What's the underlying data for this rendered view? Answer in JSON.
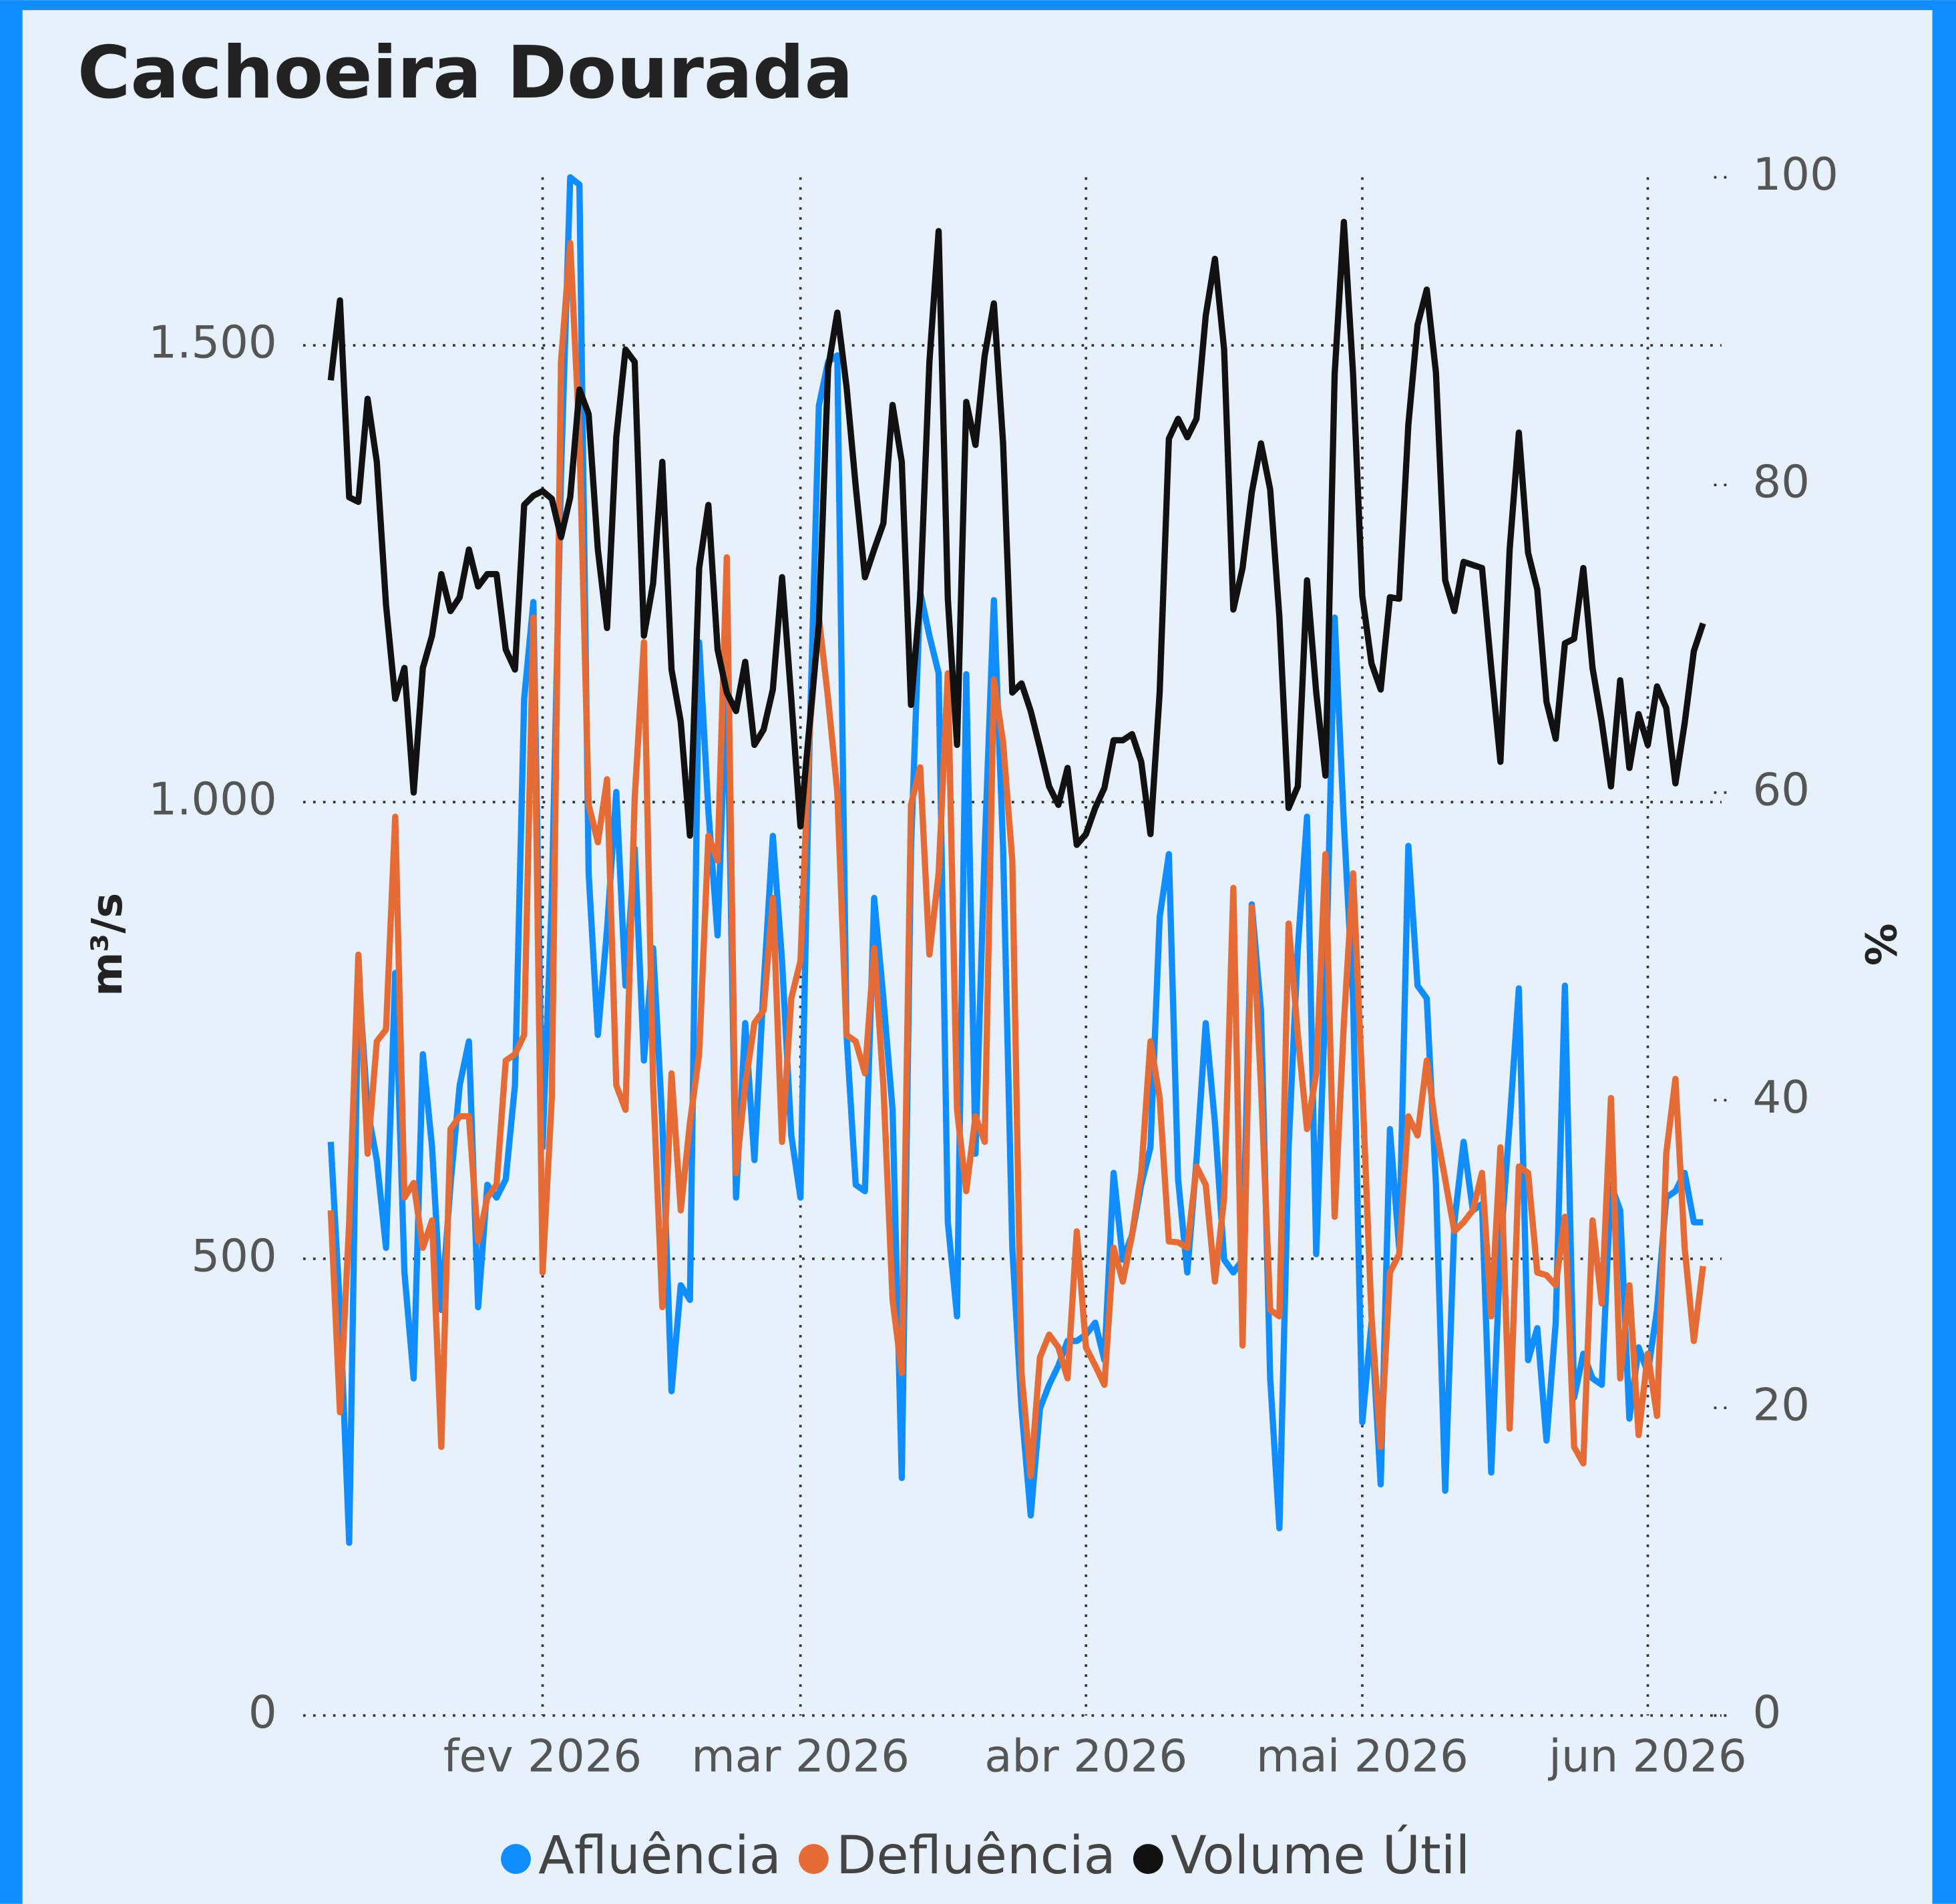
{
  "chart_data": {
    "type": "line",
    "title": "Cachoeira Dourada",
    "y_label": "m³/s",
    "y2_label": "%",
    "x": [
      9,
      10,
      11,
      12,
      13,
      14,
      15,
      16,
      17,
      18,
      19,
      20,
      21,
      22,
      23,
      24,
      25,
      26,
      27,
      28,
      29,
      30,
      31,
      32,
      33,
      34,
      35,
      36,
      37,
      38,
      39,
      40,
      41,
      42,
      43,
      44,
      45,
      46,
      47,
      48,
      49,
      50,
      51,
      52,
      53,
      54,
      55,
      56,
      57,
      58,
      59,
      60,
      61,
      62,
      63,
      64,
      65,
      66,
      67,
      68,
      69,
      70,
      71,
      72,
      73,
      74,
      75,
      76,
      77,
      78,
      79,
      80,
      81,
      82,
      83,
      84,
      85,
      86,
      87,
      88,
      89,
      90,
      91,
      92,
      93,
      94,
      95,
      96,
      97,
      98,
      99,
      100,
      101,
      102,
      103,
      104,
      105,
      106,
      107,
      108,
      109,
      110,
      111,
      112,
      113,
      114,
      115,
      116,
      117,
      118,
      119,
      120,
      121,
      122,
      123,
      124,
      125,
      126,
      127,
      128,
      129,
      130,
      131,
      132,
      133,
      134,
      135,
      136,
      137,
      138,
      139,
      140,
      141,
      142,
      143,
      144,
      145,
      146,
      147,
      148,
      149,
      150,
      151,
      152,
      153,
      154,
      155,
      156,
      157,
      158
    ],
    "xlim": [
      6,
      160
    ],
    "xticks": [
      {
        "value": 32,
        "label": "fev 2026"
      },
      {
        "value": 60,
        "label": "mar 2026"
      },
      {
        "value": 91,
        "label": "abr 2026"
      },
      {
        "value": 121,
        "label": "mai 2026"
      },
      {
        "value": 152,
        "label": "jun 2026"
      }
    ],
    "ylim": [
      0,
      1684
    ],
    "yticks": [
      0,
      500,
      {
        "value": 1000,
        "label": "1.000"
      },
      {
        "value": 1500,
        "label": "1.500"
      }
    ],
    "y2lim": [
      0,
      100
    ],
    "y2ticks": [
      0,
      20,
      40,
      60,
      80,
      100
    ],
    "grid": true,
    "legend": "bottom",
    "series": [
      {
        "name": "Afluência",
        "color": "#118dff",
        "values": [
          628,
          444,
          189,
          813,
          663,
          608,
          512,
          813,
          485,
          369,
          724,
          622,
          444,
          581,
          690,
          738,
          447,
          581,
          567,
          587,
          690,
          1113,
          1219,
          622,
          895,
          1359,
          1684,
          1676,
          922,
          745,
          861,
          1011,
          799,
          949,
          717,
          840,
          649,
          355,
          471,
          455,
          1175,
          990,
          854,
          1141,
          567,
          758,
          608,
          799,
          963,
          826,
          635,
          567,
          1072,
          1434,
          1482,
          1489,
          745,
          581,
          574,
          895,
          785,
          663,
          260,
          949,
          1230,
          1182,
          1141,
          540,
          437,
          1140,
          615,
          949,
          1221,
          949,
          512,
          336,
          219,
          336,
          362,
          383,
          410,
          410,
          417,
          430,
          389,
          594,
          499,
          526,
          581,
          622,
          874,
          943,
          587,
          485,
          608,
          758,
          649,
          499,
          485,
          499,
          888,
          772,
          369,
          205,
          622,
          840,
          984,
          505,
          785,
          1202,
          977,
          785,
          321,
          430,
          253,
          642,
          512,
          952,
          799,
          785,
          581,
          246,
          540,
          628,
          553,
          560,
          266,
          512,
          649,
          796,
          389,
          424,
          301,
          430,
          799,
          348,
          396,
          369,
          362,
          581,
          553,
          325,
          403,
          375,
          444,
          567,
          574,
          594,
          540,
          540
        ]
      },
      {
        "name": "Defluência",
        "color": "#e66c37",
        "values": [
          553,
          332,
          540,
          833,
          615,
          738,
          751,
          984,
          567,
          583,
          512,
          542,
          294,
          642,
          656,
          656,
          519,
          567,
          581,
          717,
          724,
          745,
          1202,
          485,
          676,
          1482,
          1612,
          1400,
          997,
          956,
          1025,
          690,
          663,
          1004,
          1175,
          690,
          447,
          703,
          553,
          649,
          724,
          963,
          936,
          1268,
          594,
          690,
          758,
          772,
          895,
          628,
          785,
          826,
          1079,
          1202,
          1113,
          1011,
          745,
          738,
          703,
          840,
          690,
          455,
          375,
          997,
          1038,
          833,
          922,
          1141,
          663,
          574,
          656,
          628,
          1134,
          1065,
          936,
          375,
          262,
          392,
          417,
          403,
          369,
          530,
          403,
          383,
          362,
          512,
          475,
          526,
          594,
          738,
          676,
          519,
          518,
          512,
          601,
          581,
          475,
          567,
          906,
          405,
          885,
          690,
          444,
          437,
          867,
          745,
          642,
          703,
          943,
          546,
          758,
          922,
          690,
          437,
          294,
          485,
          505,
          656,
          635,
          717,
          642,
          587,
          530,
          540,
          553,
          594,
          437,
          622,
          314,
          601,
          594,
          485,
          482,
          471,
          546,
          294,
          276,
          542,
          451,
          676,
          369,
          471,
          307,
          396,
          328,
          615,
          697,
          512,
          410,
          492
        ]
      },
      {
        "name": "Volume Útil",
        "color": "#111111",
        "axis": "y2",
        "values": [
          86.8,
          92,
          79.2,
          78.9,
          85.6,
          81.5,
          72.2,
          66.1,
          68.1,
          60,
          68.1,
          70.2,
          74.2,
          71.8,
          72.7,
          75.8,
          73.4,
          74.2,
          74.2,
          69.3,
          68,
          78.7,
          79.3,
          79.6,
          79.1,
          76.6,
          79.2,
          86.2,
          84.6,
          75.8,
          70.7,
          83.1,
          88.8,
          88,
          70.2,
          73.6,
          81.5,
          68,
          64.6,
          57.2,
          74.6,
          78.7,
          69.3,
          66.5,
          65.3,
          68.5,
          63.1,
          64.1,
          66.7,
          74,
          66.1,
          57.8,
          64.5,
          71,
          87.6,
          91.2,
          86.4,
          79.9,
          74,
          75.8,
          77.5,
          85.2,
          81.5,
          65.7,
          72.7,
          88,
          96.5,
          72.6,
          63.1,
          85.4,
          82.6,
          88.4,
          91.8,
          82.7,
          66.5,
          67.1,
          65.3,
          62.9,
          60.4,
          59.2,
          61.6,
          56.6,
          57.3,
          59,
          60.3,
          63.4,
          63.4,
          63.8,
          62,
          57.3,
          66.5,
          83,
          84.3,
          83.1,
          84.3,
          91,
          94.7,
          88.8,
          71.9,
          74.6,
          79.5,
          82.7,
          79.7,
          71.4,
          59,
          60.4,
          73.8,
          66.5,
          61.1,
          87.2,
          97.1,
          87.2,
          72.8,
          68.4,
          66.7,
          72.7,
          72.6,
          83.9,
          90.4,
          92.7,
          87.3,
          73.8,
          71.8,
          75,
          74.8,
          74.6,
          68.1,
          62,
          75.8,
          83.4,
          75.6,
          73.2,
          65.9,
          63.5,
          69.7,
          70,
          74.6,
          68.1,
          64.6,
          60.4,
          67.3,
          61.6,
          65.1,
          63.1,
          66.9,
          65.5,
          60.6,
          64.5,
          69.2,
          71
        ]
      }
    ]
  }
}
